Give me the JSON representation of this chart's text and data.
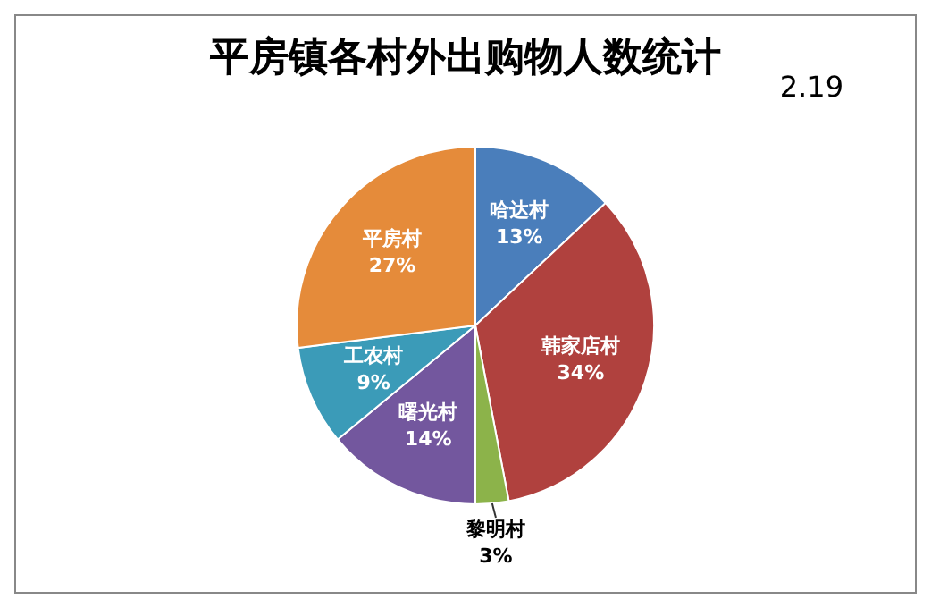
{
  "chart_data": {
    "type": "pie",
    "title": "平房镇各村外出购物人数统计",
    "annotations": [
      "2.19"
    ],
    "categories": [
      "哈达村",
      "韩家店村",
      "黎明村",
      "曙光村",
      "工农村",
      "平房村"
    ],
    "values": [
      13,
      34,
      3,
      14,
      9,
      27
    ],
    "value_labels": [
      "13%",
      "34%",
      "3%",
      "14%",
      "9%",
      "27%"
    ],
    "colors": [
      "#4a7ebb",
      "#b0413e",
      "#8cb34a",
      "#73579e",
      "#3b9bb8",
      "#e58b3a"
    ]
  }
}
